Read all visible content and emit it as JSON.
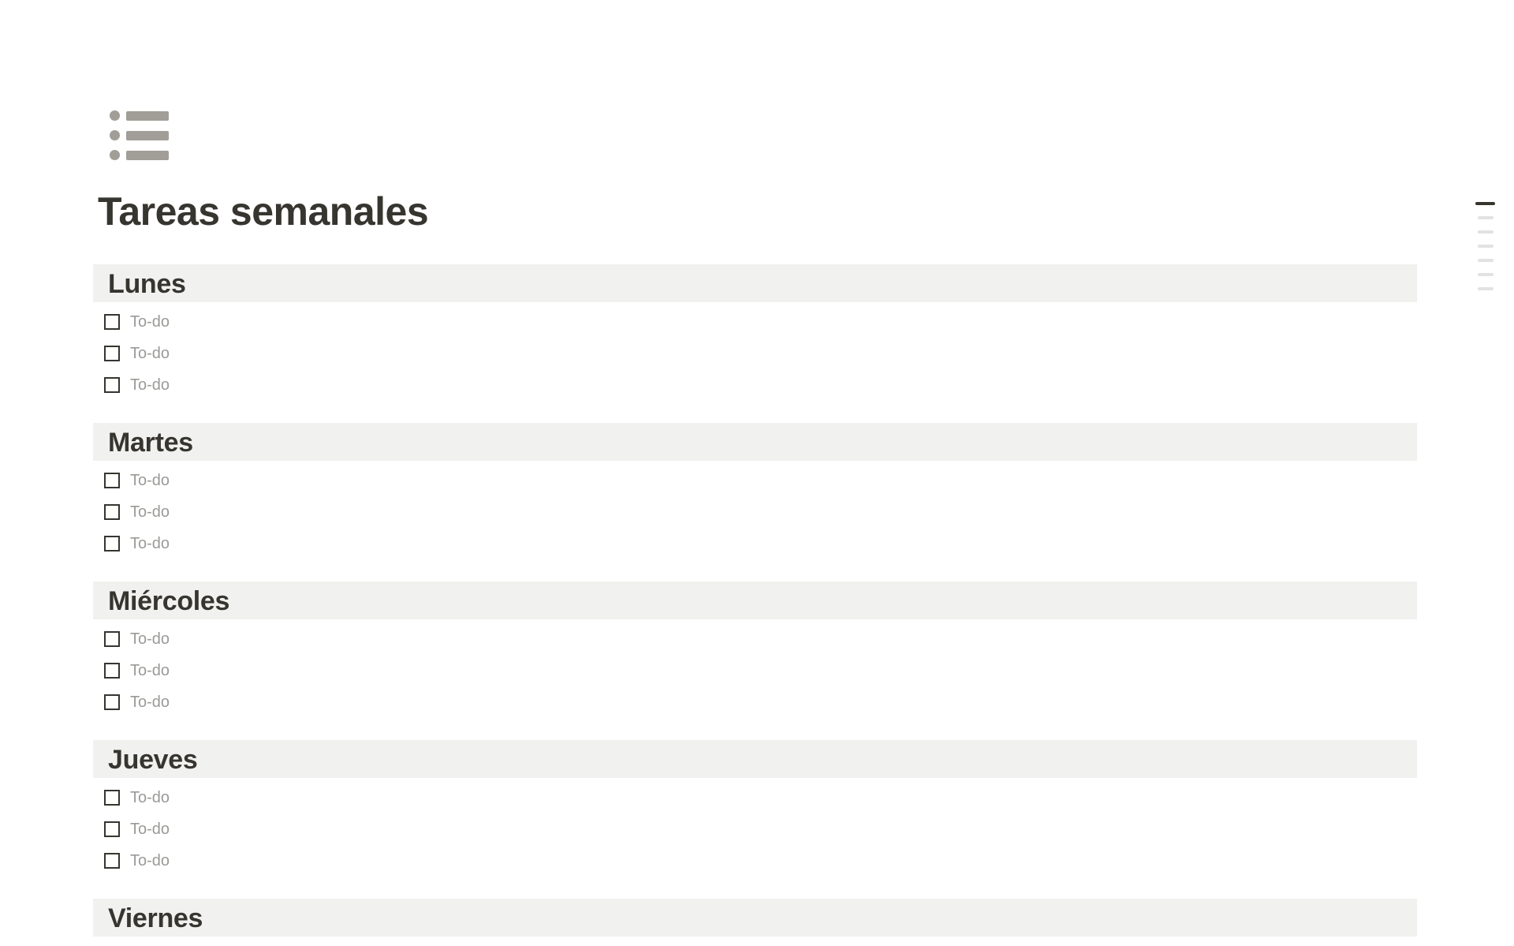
{
  "page": {
    "icon": "bulleted-list-icon",
    "title": "Tareas semanales"
  },
  "sections": [
    {
      "heading": "Lunes",
      "todos": [
        {
          "label": "To-do",
          "checked": false
        },
        {
          "label": "To-do",
          "checked": false
        },
        {
          "label": "To-do",
          "checked": false
        }
      ]
    },
    {
      "heading": "Martes",
      "todos": [
        {
          "label": "To-do",
          "checked": false
        },
        {
          "label": "To-do",
          "checked": false
        },
        {
          "label": "To-do",
          "checked": false
        }
      ]
    },
    {
      "heading": "Miércoles",
      "todos": [
        {
          "label": "To-do",
          "checked": false
        },
        {
          "label": "To-do",
          "checked": false
        },
        {
          "label": "To-do",
          "checked": false
        }
      ]
    },
    {
      "heading": "Jueves",
      "todos": [
        {
          "label": "To-do",
          "checked": false
        },
        {
          "label": "To-do",
          "checked": false
        },
        {
          "label": "To-do",
          "checked": false
        }
      ]
    },
    {
      "heading": "Viernes",
      "todos": []
    }
  ],
  "toc": {
    "lines": 7,
    "active_index": 0
  },
  "colors": {
    "text": "#37352f",
    "muted": "#9b9a97",
    "heading_bg": "#f1f1ef",
    "icon": "#a19e97",
    "toc_active": "#37352f",
    "toc_inactive": "#e3e2e0"
  }
}
